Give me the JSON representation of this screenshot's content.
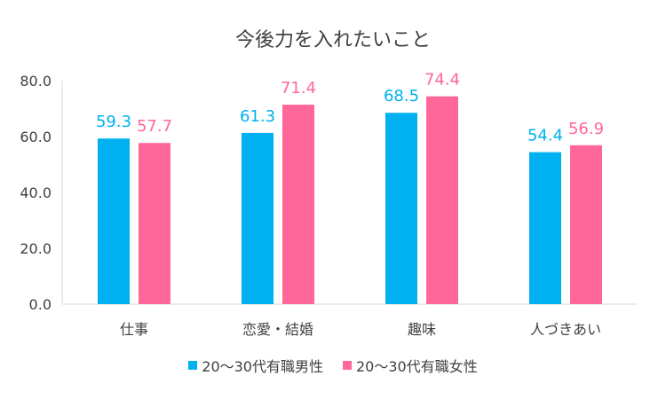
{
  "chart_data": {
    "type": "bar",
    "title": "今後力を入れたいこと",
    "categories": [
      "仕事",
      "恋愛・結婚",
      "趣味",
      "人づきあい"
    ],
    "series": [
      {
        "name": "20～30代有職男性",
        "color": "#00b0f0",
        "values": [
          59.3,
          61.3,
          68.5,
          54.4
        ]
      },
      {
        "name": "20～30代有職女性",
        "color": "#ff6699",
        "values": [
          57.7,
          71.4,
          74.4,
          56.9
        ]
      }
    ],
    "ylim": [
      0,
      80
    ],
    "yticks": [
      "0.0",
      "20.0",
      "40.0",
      "60.0",
      "80.0"
    ],
    "ytick_values": [
      0,
      20,
      40,
      60,
      80
    ],
    "xlabel": "",
    "ylabel": "",
    "legend": "bottom",
    "grid": false
  }
}
